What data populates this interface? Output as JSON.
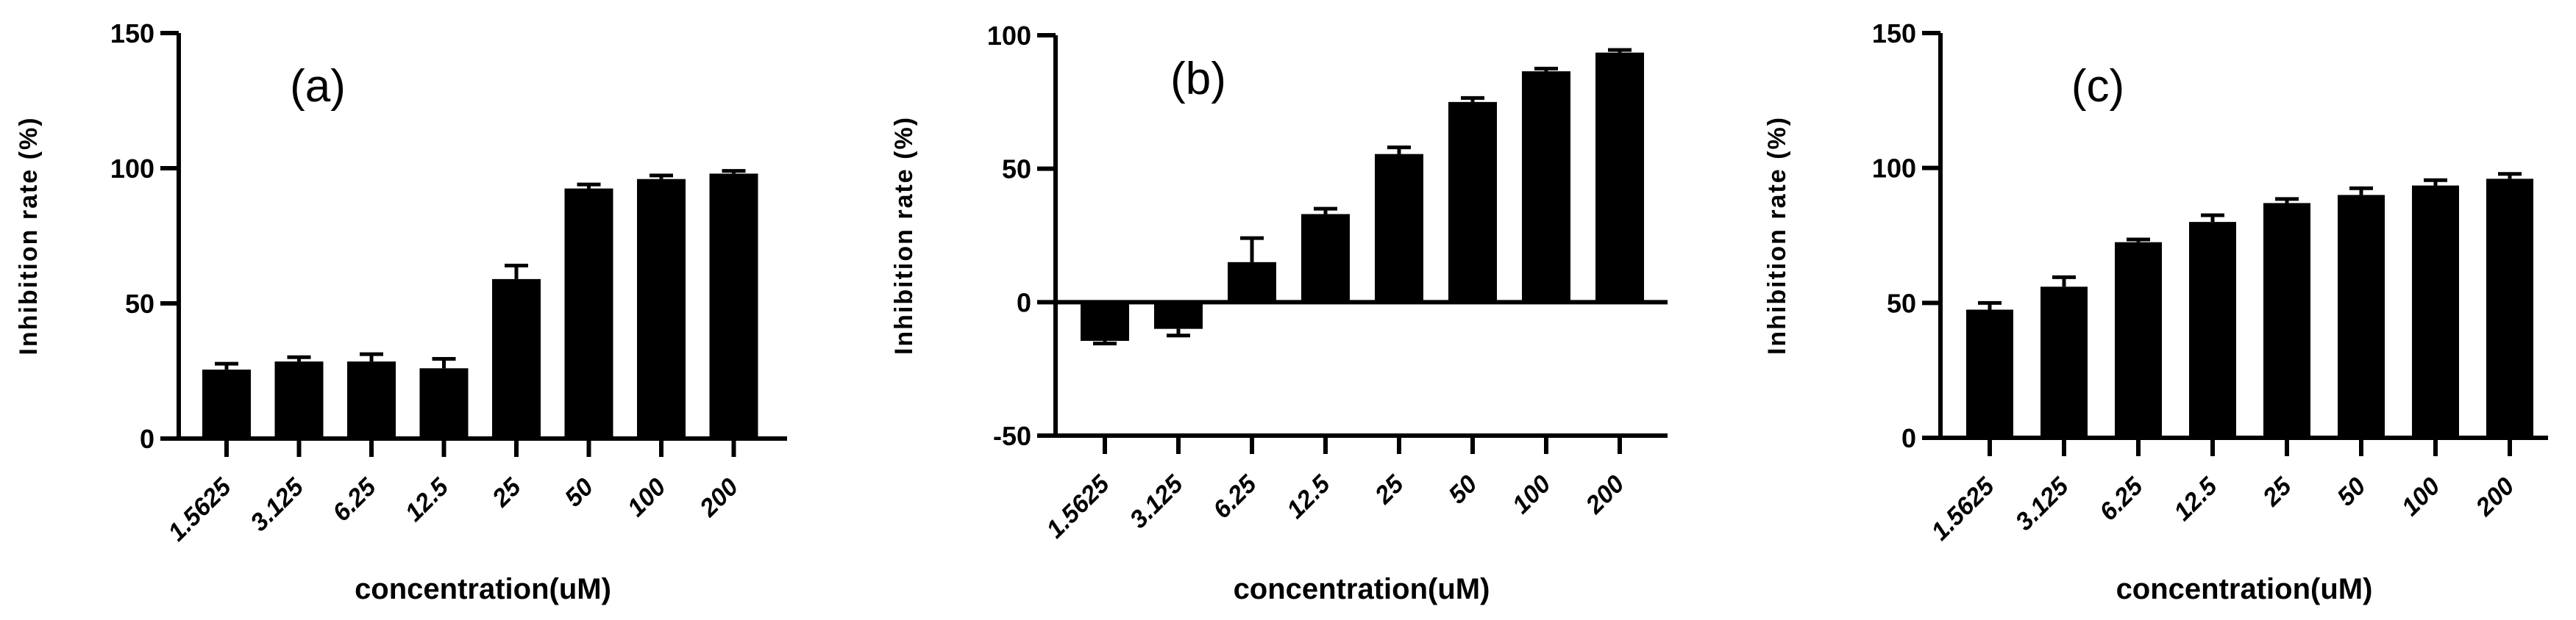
{
  "figure": {
    "background": "#ffffff",
    "bar_color": "#000000",
    "axis_color": "#000000",
    "panel_labels": [
      "(a)",
      "(b)",
      "(c)"
    ]
  },
  "chart_data": [
    {
      "type": "bar",
      "panel_label": "(a)",
      "title": "",
      "xlabel": "concentration(uM)",
      "ylabel": "Inhibition rate (%)",
      "categories": [
        "1.5625",
        "3.125",
        "6.25",
        "12.5",
        "25",
        "50",
        "100",
        "200"
      ],
      "values": [
        25.5,
        28.5,
        28.5,
        26,
        59,
        92.5,
        96,
        98
      ],
      "errors": [
        2.2,
        1.6,
        2.7,
        3.5,
        5,
        1.5,
        1.3,
        1
      ],
      "ylim": [
        0,
        150
      ],
      "yticks": [
        0,
        50,
        100,
        150
      ],
      "grid": false,
      "legend": "none",
      "bar_color": "#000000",
      "error_bar_style": "upper-whisker-with-cap"
    },
    {
      "type": "bar",
      "panel_label": "(b)",
      "title": "",
      "xlabel": "concentration(uM)",
      "ylabel": "Inhibition rate (%)",
      "categories": [
        "1.5625",
        "3.125",
        "6.25",
        "12.5",
        "25",
        "50",
        "100",
        "200"
      ],
      "values": [
        -14.5,
        -10,
        15,
        33,
        55.5,
        75,
        86.5,
        93.5
      ],
      "errors": [
        1,
        2.5,
        9,
        2,
        2.5,
        1.5,
        1,
        1
      ],
      "ylim": [
        -50,
        100
      ],
      "yticks": [
        -50,
        0,
        50,
        100
      ],
      "grid": false,
      "legend": "none",
      "bar_color": "#000000",
      "error_bar_style": "outward-whisker-with-cap"
    },
    {
      "type": "bar",
      "panel_label": "(c)",
      "title": "",
      "xlabel": "concentration(uM)",
      "ylabel": "Inhibition rate (%)",
      "categories": [
        "1.5625",
        "3.125",
        "6.25",
        "12.5",
        "25",
        "50",
        "100",
        "200"
      ],
      "values": [
        47.5,
        56,
        72.5,
        80,
        87,
        90,
        93.5,
        96
      ],
      "errors": [
        2.5,
        3.5,
        1,
        2.5,
        1.5,
        2.5,
        2,
        1.8
      ],
      "ylim": [
        0,
        150
      ],
      "yticks": [
        0,
        50,
        100,
        150
      ],
      "grid": false,
      "legend": "none",
      "bar_color": "#000000",
      "error_bar_style": "upper-whisker-with-cap"
    }
  ]
}
